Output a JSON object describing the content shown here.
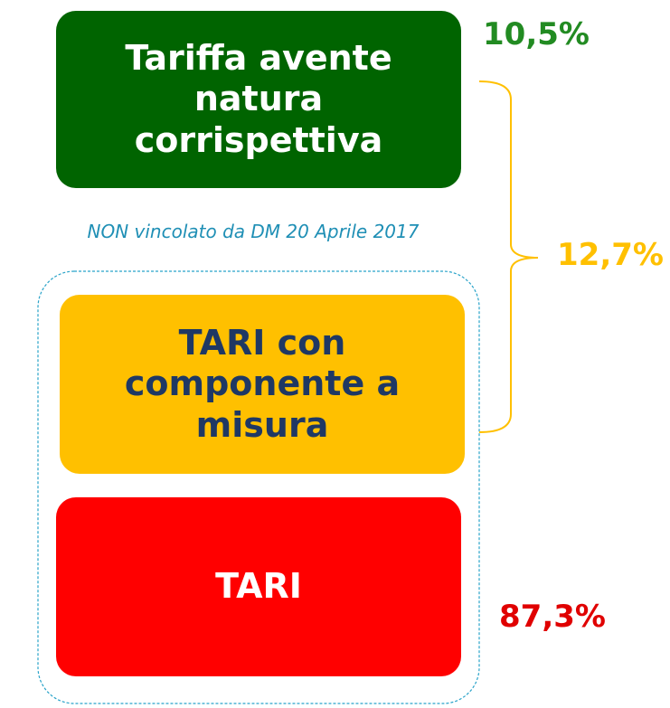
{
  "boxes": [
    {
      "label": "Tariffa avente natura corrispettiva",
      "percent": "10,5%"
    },
    {
      "label": "TARI con componente a misura"
    },
    {
      "label": "TARI",
      "percent": "87,3%"
    }
  ],
  "note": "NON vincolato da DM 20 Aprile 2017",
  "brace_percent": "12,7%"
}
